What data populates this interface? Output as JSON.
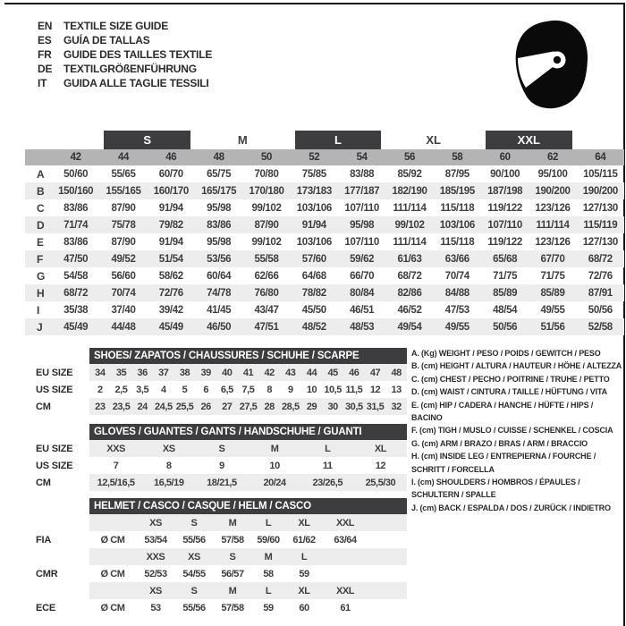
{
  "colors": {
    "dark_bar": "#3d3d3f",
    "size_header_bg": "#b4b4b4",
    "row_stripe": "#ededed",
    "frame": "#151515",
    "text": "#3e3e3e"
  },
  "header": {
    "languages": [
      {
        "code": "EN",
        "title": "TEXTILE SIZE GUIDE"
      },
      {
        "code": "ES",
        "title": "GUÍA DE TALLAS"
      },
      {
        "code": "FR",
        "title": "GUIDE DES TAILLES TEXTILE"
      },
      {
        "code": "DE",
        "title": "TEXTILGRÖßENFÜHRUNG"
      },
      {
        "code": "IT",
        "title": "GUIDA ALLE TAGLIE TESSILI"
      }
    ],
    "icon": "racing-helmet"
  },
  "apparel_table": {
    "size_groups": [
      {
        "label": "S",
        "boxed": true,
        "start": 1,
        "span": 2
      },
      {
        "label": "M",
        "boxed": false,
        "start": 3,
        "span": 2
      },
      {
        "label": "L",
        "boxed": true,
        "start": 5,
        "span": 2
      },
      {
        "label": "XL",
        "boxed": false,
        "start": 7,
        "span": 2
      },
      {
        "label": "XXL",
        "boxed": true,
        "start": 9,
        "span": 2
      }
    ],
    "sizes": [
      "42",
      "44",
      "46",
      "48",
      "50",
      "52",
      "54",
      "56",
      "58",
      "60",
      "62",
      "64"
    ],
    "rows": [
      {
        "label": "A",
        "values": [
          "50/60",
          "55/65",
          "60/70",
          "65/75",
          "70/80",
          "75/85",
          "83/88",
          "85/92",
          "87/95",
          "90/100",
          "95/100",
          "105/115"
        ]
      },
      {
        "label": "B",
        "values": [
          "150/160",
          "155/165",
          "160/170",
          "165/175",
          "170/180",
          "173/183",
          "177/187",
          "182/190",
          "185/195",
          "187/198",
          "190/200",
          "190/200"
        ]
      },
      {
        "label": "C",
        "values": [
          "83/86",
          "87/90",
          "91/94",
          "95/98",
          "99/102",
          "103/106",
          "107/110",
          "111/114",
          "115/118",
          "119/122",
          "123/126",
          "127/130"
        ]
      },
      {
        "label": "D",
        "values": [
          "71/74",
          "75/78",
          "79/82",
          "83/86",
          "87/90",
          "91/94",
          "95/98",
          "99/102",
          "103/106",
          "107/110",
          "111/114",
          "115/119"
        ]
      },
      {
        "label": "E",
        "values": [
          "83/86",
          "87/90",
          "91/94",
          "95/98",
          "99/102",
          "103/106",
          "107/110",
          "111/114",
          "115/118",
          "119/122",
          "123/126",
          "127/130"
        ]
      },
      {
        "label": "F",
        "values": [
          "47/50",
          "49/52",
          "51/54",
          "53/56",
          "55/58",
          "57/60",
          "59/62",
          "61/63",
          "63/66",
          "65/68",
          "67/70",
          "68/72"
        ]
      },
      {
        "label": "G",
        "values": [
          "54/58",
          "56/60",
          "58/62",
          "60/64",
          "62/66",
          "64/68",
          "66/70",
          "68/72",
          "70/74",
          "71/75",
          "71/75",
          "72/76"
        ]
      },
      {
        "label": "H",
        "values": [
          "68/72",
          "70/74",
          "72/76",
          "74/78",
          "76/80",
          "78/82",
          "80/84",
          "82/86",
          "84/88",
          "85/89",
          "85/89",
          "87/91"
        ]
      },
      {
        "label": "I",
        "values": [
          "35/38",
          "37/40",
          "39/42",
          "41/45",
          "43/47",
          "45/50",
          "46/51",
          "46/52",
          "47/53",
          "48/54",
          "49/55",
          "50/56"
        ]
      },
      {
        "label": "J",
        "values": [
          "45/49",
          "44/48",
          "45/49",
          "46/50",
          "47/51",
          "48/52",
          "48/53",
          "49/54",
          "49/55",
          "50/56",
          "51/56",
          "52/58"
        ]
      }
    ]
  },
  "shoes_table": {
    "title": "SHOES/ ZAPATOS / CHAUSSURES / SCHUHE / SCARPE",
    "rows": [
      {
        "label": "EU SIZE",
        "striped": true,
        "values": [
          "34",
          "35",
          "36",
          "37",
          "38",
          "39",
          "40",
          "41",
          "42",
          "43",
          "44",
          "45",
          "46",
          "47",
          "48"
        ]
      },
      {
        "label": "US SIZE",
        "striped": false,
        "values": [
          "2",
          "2,5",
          "3,5",
          "4",
          "5",
          "6",
          "6,5",
          "7,5",
          "8",
          "9",
          "10",
          "10,5",
          "11,5",
          "12",
          "13"
        ]
      },
      {
        "label": "CM",
        "striped": true,
        "values": [
          "23",
          "23,5",
          "24",
          "24,5",
          "25,5",
          "26",
          "27",
          "27,5",
          "28",
          "28,5",
          "29",
          "30",
          "30,5",
          "31,5",
          "32"
        ]
      }
    ]
  },
  "gloves_table": {
    "title": "GLOVES / GUANTES / GANTS / HANDSCHUHE / GUANTI",
    "rows": [
      {
        "label": "EU SIZE",
        "striped": true,
        "values": [
          "XXS",
          "XS",
          "S",
          "M",
          "L",
          "XL"
        ]
      },
      {
        "label": "US SIZE",
        "striped": false,
        "values": [
          "7",
          "8",
          "9",
          "10",
          "11",
          "12"
        ]
      },
      {
        "label": "CM",
        "striped": true,
        "values": [
          "12,5/16,5",
          "16,5/19",
          "18/21,5",
          "20/24",
          "23/26,5",
          "25,5/30"
        ]
      }
    ]
  },
  "helmet_table": {
    "title": "HELMET / CASCO / CASQUE / HELM / CASCO",
    "rows": [
      {
        "label": "",
        "unit": "",
        "striped": true,
        "values": [
          "XS",
          "S",
          "M",
          "L",
          "XL",
          "XXL"
        ]
      },
      {
        "label": "FIA",
        "unit": "Ø CM",
        "striped": false,
        "values": [
          "53/54",
          "55/56",
          "57/58",
          "59/60",
          "61/62",
          "63/64"
        ]
      },
      {
        "label": "",
        "unit": "",
        "striped": true,
        "values": [
          "XXS",
          "XS",
          "S",
          "M",
          "L",
          ""
        ]
      },
      {
        "label": "CMR",
        "unit": "Ø CM",
        "striped": false,
        "values": [
          "52/53",
          "54/55",
          "56/57",
          "58",
          "59",
          ""
        ]
      },
      {
        "label": "",
        "unit": "",
        "striped": true,
        "values": [
          "XS",
          "S",
          "M",
          "L",
          "XL",
          "XXL"
        ]
      },
      {
        "label": "ECE",
        "unit": "Ø CM",
        "striped": false,
        "values": [
          "53",
          "55/56",
          "57/58",
          "59",
          "60",
          "61"
        ]
      }
    ]
  },
  "legend": {
    "items": [
      "A. (Kg) WEIGHT / PESO / POIDS / GEWITCH / PESO",
      "B. (cm) HEIGHT / ALTURA / HAUTEUR / HÖHE / ALTEZZA",
      "C. (cm) CHEST / PECHO / POITRINE / TRUHE / PETTO",
      "D. (cm) WAIST / CINTURA / TAILLE / HÜFTUNG / VITA",
      "E. (cm) HIP / CADERA / HANCHE / HÜFTE / HIPS / BACINO",
      "F. (cm) TIGH / MUSLO / CUISSE / SCHENKEL / COSCIA",
      "G. (cm) ARM / BRAZO / BRAS / ARM / BRACCIO",
      "H. (cm) INSIDE LEG / ENTREPIERNA / FOURCHE / SCHRITT / FORCELLA",
      "I. (cm) SHOULDERS / HOMBROS / ÉPAULES / SCHULTERN / SPALLE",
      "J. (cm) BACK / ESPALDA / DOS / ZURÜCK / INDIETRO"
    ]
  }
}
